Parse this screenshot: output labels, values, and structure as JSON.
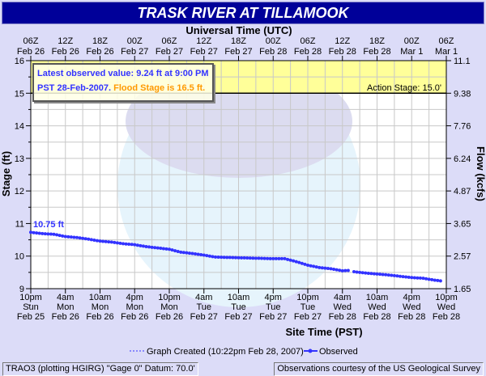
{
  "title": "TRASK RIVER  AT TILLAMOOK",
  "info": {
    "line1": "Latest observed value: 9.24 ft at 9:00 PM",
    "line2a": "PST 28-Feb-2007.",
    "line2b": "Flood Stage is 16.5 ft."
  },
  "footer": {
    "left": "TRAO3 (plotting HGIRG)  \"Gage 0\" Datum: 70.0'",
    "right": "Observations courtesy of the  US Geological Survey"
  },
  "colors": {
    "series": "#3333ff",
    "title_bg": "#000099",
    "band": "#ffff99",
    "flood": "#ff9900"
  },
  "chart_data": {
    "type": "line",
    "title": "TRASK RIVER  AT TILLAMOOK",
    "xlabel": "Site Time (PST)",
    "x2label": "Universal Time (UTC)",
    "ylabel": "Stage (ft)",
    "y2label": "Flow (kcfs)",
    "ylim": [
      9,
      16
    ],
    "xlim_hours": [
      0,
      72
    ],
    "y_ticks": [
      "16",
      "15",
      "14",
      "13",
      "12",
      "11",
      "10",
      "9"
    ],
    "y2_ticks": [
      "11.1",
      "9.38",
      "7.76",
      "6.24",
      "4.87",
      "3.65",
      "2.57",
      "1.65"
    ],
    "x_ticks": [
      [
        "10pm",
        "Sun",
        "Feb 25"
      ],
      [
        "4am",
        "Mon",
        "Feb 26"
      ],
      [
        "10am",
        "Mon",
        "Feb 26"
      ],
      [
        "4pm",
        "Mon",
        "Feb 26"
      ],
      [
        "10pm",
        "Mon",
        "Feb 26"
      ],
      [
        "4am",
        "Tue",
        "Feb 27"
      ],
      [
        "10am",
        "Tue",
        "Feb 27"
      ],
      [
        "4pm",
        "Tue",
        "Feb 27"
      ],
      [
        "10pm",
        "Tue",
        "Feb 27"
      ],
      [
        "4am",
        "Wed",
        "Feb 28"
      ],
      [
        "10am",
        "Wed",
        "Feb 28"
      ],
      [
        "4pm",
        "Wed",
        "Feb 28"
      ],
      [
        "10pm",
        "Wed",
        "Feb 28"
      ]
    ],
    "x2_ticks": [
      [
        "06Z",
        "Feb 26"
      ],
      [
        "12Z",
        "Feb 26"
      ],
      [
        "18Z",
        "Feb 26"
      ],
      [
        "00Z",
        "Feb 27"
      ],
      [
        "06Z",
        "Feb 27"
      ],
      [
        "12Z",
        "Feb 27"
      ],
      [
        "18Z",
        "Feb 27"
      ],
      [
        "00Z",
        "Feb 28"
      ],
      [
        "06Z",
        "Feb 28"
      ],
      [
        "12Z",
        "Feb 28"
      ],
      [
        "18Z",
        "Feb 28"
      ],
      [
        "00Z",
        "Mar 1"
      ],
      [
        "06Z",
        "Mar 1"
      ]
    ],
    "action_stage": {
      "value": 15.0,
      "label": "Action Stage: 15.0'"
    },
    "first_label": "10.75 ft",
    "legend": {
      "created": "Graph Created (10:22pm Feb 28, 2007)",
      "observed": "Observed"
    },
    "series": [
      {
        "name": "Observed",
        "hours": [
          0,
          2,
          4,
          6,
          8,
          10,
          12,
          14,
          16,
          18,
          20,
          22,
          24,
          26,
          28,
          30,
          32,
          34,
          36,
          38,
          40,
          42,
          44,
          46,
          48,
          50,
          52,
          54,
          55,
          null,
          56,
          58,
          60,
          62,
          64,
          66,
          68,
          70,
          71
        ],
        "values": [
          10.73,
          10.69,
          10.67,
          10.6,
          10.57,
          10.52,
          10.46,
          10.43,
          10.38,
          10.35,
          10.29,
          10.25,
          10.21,
          10.12,
          10.08,
          10.03,
          9.97,
          9.96,
          9.95,
          9.94,
          9.93,
          9.92,
          9.92,
          9.83,
          9.72,
          9.65,
          9.61,
          9.55,
          9.56,
          null,
          9.52,
          9.48,
          9.45,
          9.42,
          9.38,
          9.34,
          9.32,
          9.26,
          9.24
        ]
      }
    ]
  }
}
